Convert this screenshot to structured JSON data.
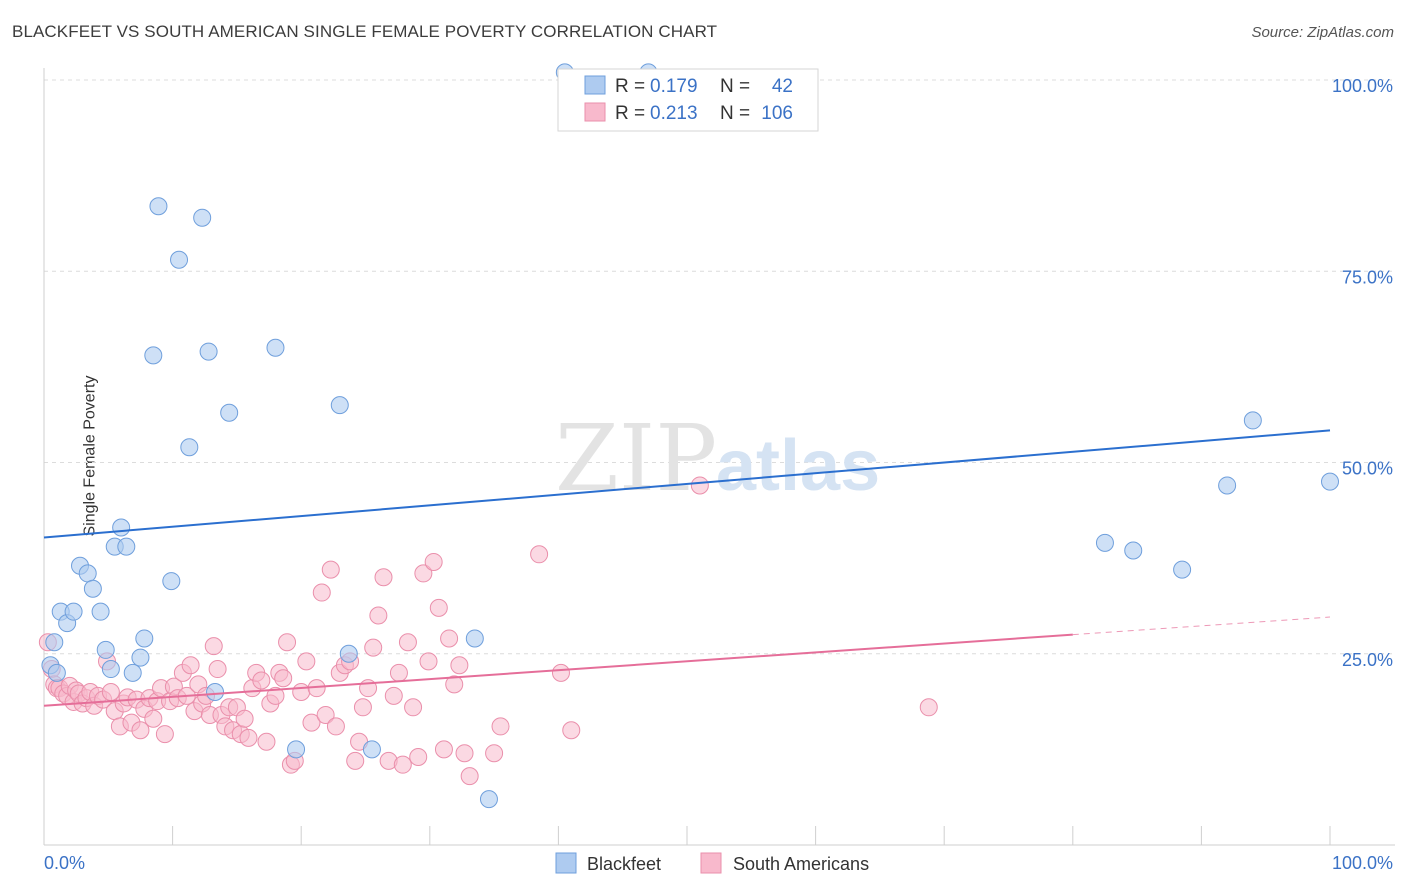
{
  "title": "BLACKFEET VS SOUTH AMERICAN SINGLE FEMALE POVERTY CORRELATION CHART",
  "source": "Source: ZipAtlas.com",
  "watermark": {
    "zip": "ZIP",
    "atlas": "atlas"
  },
  "colors": {
    "blackfeet_fill": "#aecbf0",
    "blackfeet_stroke": "#6f9fdc",
    "blackfeet_line": "#2b6fcf",
    "south_fill": "#f8b9cc",
    "south_stroke": "#ea8fab",
    "south_line": "#e56e99",
    "axis_text": "#3b72c6",
    "grid": "#dcdcdc"
  },
  "legend": {
    "rows": [
      {
        "r_label": "R =",
        "r_value": "0.179",
        "n_label": "N =",
        "n_value": "42"
      },
      {
        "r_label": "R =",
        "r_value": "0.213",
        "n_label": "N =",
        "n_value": "106"
      }
    ]
  },
  "bottom_legend": {
    "blackfeet": "Blackfeet",
    "south": "South Americans"
  },
  "chart_data": {
    "type": "scatter",
    "title": "BLACKFEET VS SOUTH AMERICAN SINGLE FEMALE POVERTY CORRELATION CHART",
    "xlabel": "",
    "ylabel": "Single Female Poverty",
    "xlim": [
      0,
      100
    ],
    "ylim": [
      0,
      100
    ],
    "x_tick_labels": [
      "0.0%",
      "100.0%"
    ],
    "y_tick_labels": [
      "25.0%",
      "50.0%",
      "75.0%",
      "100.0%"
    ],
    "y_ticks": [
      25,
      50,
      75,
      100
    ],
    "series": [
      {
        "name": "Blackfeet",
        "r": 0.179,
        "n": 42,
        "trend": {
          "x": [
            0,
            100
          ],
          "y": [
            40.2,
            54.2
          ]
        },
        "points": [
          [
            0.5,
            23.5
          ],
          [
            0.8,
            26.5
          ],
          [
            1.3,
            30.5
          ],
          [
            1.8,
            29.0
          ],
          [
            2.3,
            30.5
          ],
          [
            2.8,
            36.5
          ],
          [
            3.4,
            35.5
          ],
          [
            3.8,
            33.5
          ],
          [
            4.4,
            30.5
          ],
          [
            4.8,
            25.5
          ],
          [
            5.5,
            39.0
          ],
          [
            6.0,
            41.5
          ],
          [
            6.4,
            39.0
          ],
          [
            6.9,
            22.5
          ],
          [
            7.5,
            24.5
          ],
          [
            7.8,
            27.0
          ],
          [
            8.5,
            64.0
          ],
          [
            8.9,
            83.5
          ],
          [
            9.9,
            34.5
          ],
          [
            10.5,
            76.5
          ],
          [
            11.3,
            52.0
          ],
          [
            12.3,
            82.0
          ],
          [
            12.8,
            64.5
          ],
          [
            13.3,
            20.0
          ],
          [
            14.4,
            56.5
          ],
          [
            18.0,
            65.0
          ],
          [
            19.6,
            12.5
          ],
          [
            23.0,
            57.5
          ],
          [
            23.7,
            25.0
          ],
          [
            25.5,
            12.5
          ],
          [
            33.5,
            27.0
          ],
          [
            34.6,
            6.0
          ],
          [
            40.5,
            101.0
          ],
          [
            47.0,
            101.0
          ],
          [
            82.5,
            39.5
          ],
          [
            84.7,
            38.5
          ],
          [
            88.5,
            36.0
          ],
          [
            92.0,
            47.0
          ],
          [
            94.0,
            55.5
          ],
          [
            100.0,
            47.5
          ],
          [
            1.0,
            22.5
          ],
          [
            5.2,
            23.0
          ]
        ]
      },
      {
        "name": "South Americans",
        "r": 0.213,
        "n": 106,
        "trend": {
          "x": [
            0,
            80
          ],
          "y": [
            18.2,
            27.5
          ]
        },
        "trend_dashed": {
          "x": [
            80,
            100
          ],
          "y": [
            27.5,
            29.8
          ]
        },
        "points": [
          [
            0.3,
            26.5
          ],
          [
            0.6,
            23.0
          ],
          [
            0.8,
            21.0
          ],
          [
            1.0,
            20.5
          ],
          [
            1.2,
            20.5
          ],
          [
            1.5,
            19.8
          ],
          [
            1.8,
            19.5
          ],
          [
            2.0,
            20.8
          ],
          [
            2.3,
            18.7
          ],
          [
            2.5,
            20.2
          ],
          [
            2.7,
            19.8
          ],
          [
            3.0,
            18.5
          ],
          [
            3.3,
            19.2
          ],
          [
            3.6,
            20.0
          ],
          [
            3.9,
            18.2
          ],
          [
            4.2,
            19.5
          ],
          [
            4.6,
            19.0
          ],
          [
            4.9,
            24.0
          ],
          [
            5.2,
            20.0
          ],
          [
            5.5,
            17.5
          ],
          [
            5.9,
            15.5
          ],
          [
            6.2,
            18.5
          ],
          [
            6.5,
            19.3
          ],
          [
            6.8,
            16.0
          ],
          [
            7.2,
            19.0
          ],
          [
            7.5,
            15.0
          ],
          [
            7.8,
            17.8
          ],
          [
            8.2,
            19.2
          ],
          [
            8.5,
            16.5
          ],
          [
            8.8,
            18.8
          ],
          [
            9.1,
            20.5
          ],
          [
            9.4,
            14.5
          ],
          [
            9.8,
            18.8
          ],
          [
            10.1,
            20.7
          ],
          [
            10.4,
            19.2
          ],
          [
            10.8,
            22.5
          ],
          [
            11.1,
            19.5
          ],
          [
            11.4,
            23.5
          ],
          [
            11.7,
            17.5
          ],
          [
            12.0,
            21.0
          ],
          [
            12.3,
            18.5
          ],
          [
            12.6,
            19.5
          ],
          [
            12.9,
            17.0
          ],
          [
            13.2,
            26.0
          ],
          [
            13.5,
            23.0
          ],
          [
            13.8,
            17.0
          ],
          [
            14.1,
            15.5
          ],
          [
            14.4,
            18.0
          ],
          [
            14.7,
            15.0
          ],
          [
            15.0,
            18.0
          ],
          [
            15.3,
            14.5
          ],
          [
            15.6,
            16.5
          ],
          [
            15.9,
            14.0
          ],
          [
            16.2,
            20.5
          ],
          [
            16.5,
            22.5
          ],
          [
            16.9,
            21.5
          ],
          [
            17.3,
            13.5
          ],
          [
            17.6,
            18.5
          ],
          [
            18.0,
            19.5
          ],
          [
            18.3,
            22.5
          ],
          [
            18.6,
            21.8
          ],
          [
            18.9,
            26.5
          ],
          [
            19.2,
            10.5
          ],
          [
            19.5,
            11.0
          ],
          [
            20.0,
            20.0
          ],
          [
            20.4,
            24.0
          ],
          [
            20.8,
            16.0
          ],
          [
            21.2,
            20.5
          ],
          [
            21.6,
            33.0
          ],
          [
            21.9,
            17.0
          ],
          [
            22.3,
            36.0
          ],
          [
            22.7,
            15.5
          ],
          [
            23.0,
            22.5
          ],
          [
            23.4,
            23.5
          ],
          [
            23.8,
            24.0
          ],
          [
            24.2,
            11.0
          ],
          [
            24.5,
            13.5
          ],
          [
            24.8,
            18.0
          ],
          [
            25.2,
            20.5
          ],
          [
            25.6,
            25.8
          ],
          [
            26.0,
            30.0
          ],
          [
            26.4,
            35.0
          ],
          [
            26.8,
            11.0
          ],
          [
            27.2,
            19.5
          ],
          [
            27.6,
            22.5
          ],
          [
            27.9,
            10.5
          ],
          [
            28.3,
            26.5
          ],
          [
            28.7,
            18.0
          ],
          [
            29.1,
            11.5
          ],
          [
            29.5,
            35.5
          ],
          [
            29.9,
            24.0
          ],
          [
            30.3,
            37.0
          ],
          [
            30.7,
            31.0
          ],
          [
            31.1,
            12.5
          ],
          [
            31.5,
            27.0
          ],
          [
            31.9,
            21.0
          ],
          [
            32.3,
            23.5
          ],
          [
            32.7,
            12.0
          ],
          [
            33.1,
            9.0
          ],
          [
            35.5,
            15.5
          ],
          [
            38.5,
            38.0
          ],
          [
            40.2,
            22.5
          ],
          [
            41.0,
            15.0
          ],
          [
            51.0,
            47.0
          ],
          [
            68.8,
            18.0
          ],
          [
            35.0,
            12.0
          ]
        ]
      }
    ]
  }
}
